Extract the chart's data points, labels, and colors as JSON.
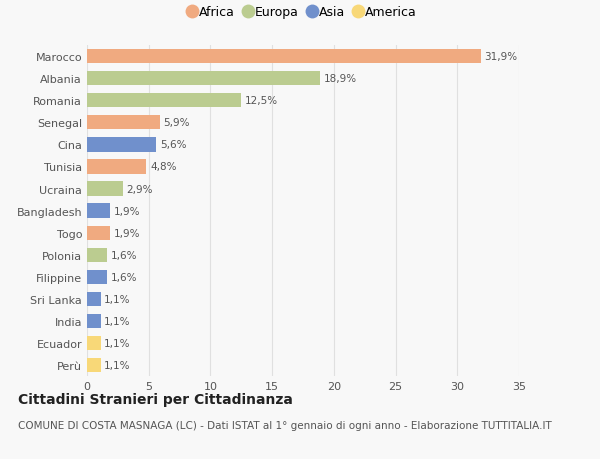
{
  "countries": [
    "Marocco",
    "Albania",
    "Romania",
    "Senegal",
    "Cina",
    "Tunisia",
    "Ucraina",
    "Bangladesh",
    "Togo",
    "Polonia",
    "Filippine",
    "Sri Lanka",
    "India",
    "Ecuador",
    "Perù"
  ],
  "values": [
    31.9,
    18.9,
    12.5,
    5.9,
    5.6,
    4.8,
    2.9,
    1.9,
    1.9,
    1.6,
    1.6,
    1.1,
    1.1,
    1.1,
    1.1
  ],
  "labels": [
    "31,9%",
    "18,9%",
    "12,5%",
    "5,9%",
    "5,6%",
    "4,8%",
    "2,9%",
    "1,9%",
    "1,9%",
    "1,6%",
    "1,6%",
    "1,1%",
    "1,1%",
    "1,1%",
    "1,1%"
  ],
  "continents": [
    "Africa",
    "Europa",
    "Europa",
    "Africa",
    "Asia",
    "Africa",
    "Europa",
    "Asia",
    "Africa",
    "Europa",
    "Asia",
    "Asia",
    "Asia",
    "America",
    "America"
  ],
  "continent_colors": {
    "Africa": "#F0AA80",
    "Europa": "#BBCC90",
    "Asia": "#7090CC",
    "America": "#F8D878"
  },
  "legend_order": [
    "Africa",
    "Europa",
    "Asia",
    "America"
  ],
  "title": "Cittadini Stranieri per Cittadinanza",
  "subtitle": "COMUNE DI COSTA MASNAGA (LC) - Dati ISTAT al 1° gennaio di ogni anno - Elaborazione TUTTITALIA.IT",
  "xlim": [
    0,
    35
  ],
  "xticks": [
    0,
    5,
    10,
    15,
    20,
    25,
    30,
    35
  ],
  "background_color": "#f8f8f8",
  "grid_color": "#e0e0e0",
  "bar_height": 0.65,
  "title_fontsize": 10,
  "subtitle_fontsize": 7.5,
  "label_fontsize": 7.5,
  "tick_fontsize": 8,
  "legend_fontsize": 9
}
